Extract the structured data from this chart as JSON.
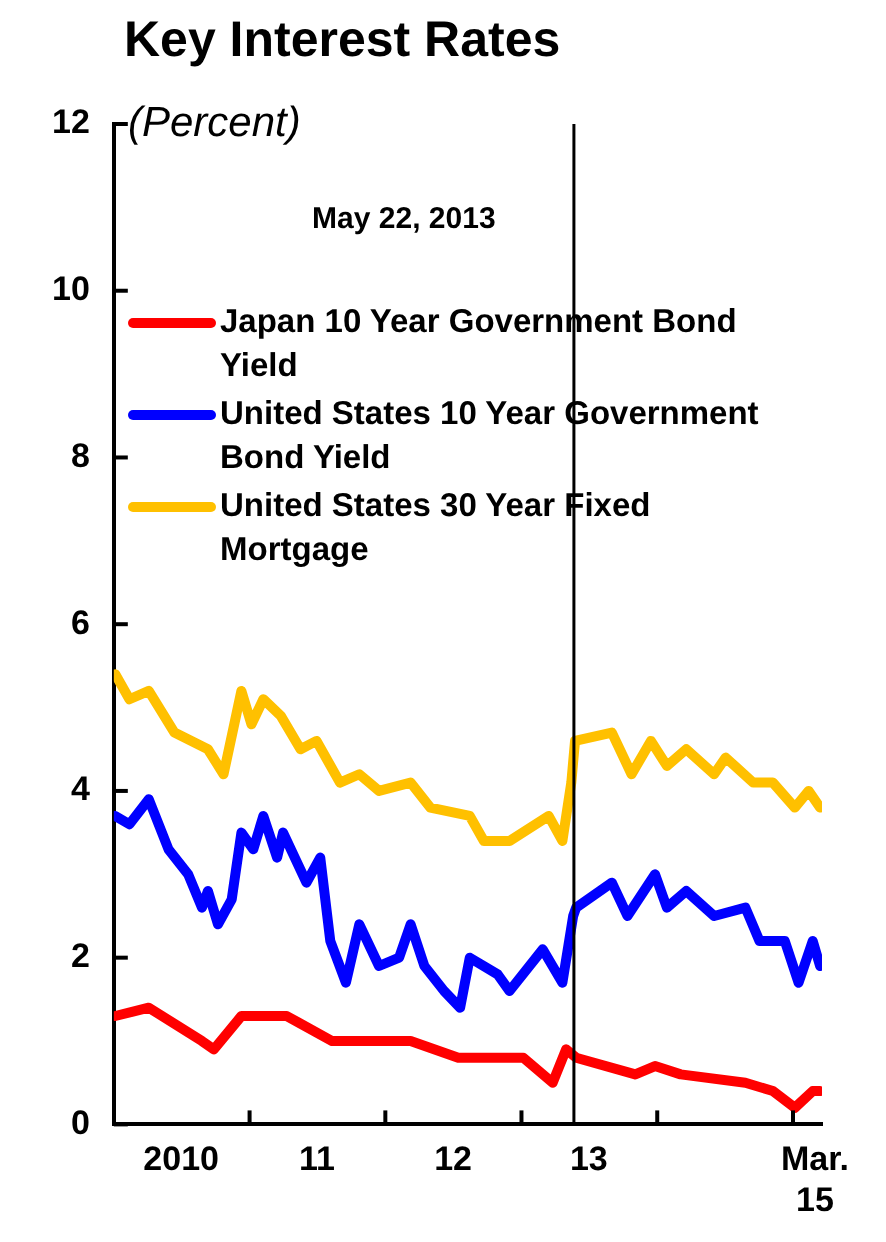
{
  "chart_data": {
    "type": "line",
    "title": "Key Interest Rates",
    "subtitle": "(Percent)",
    "legend": "top left",
    "marker": "none",
    "line_style": "solid",
    "grid": false,
    "xlim": [
      "2010-01-01",
      "2015-03-20"
    ],
    "xticks": [
      {
        "value": "2010-07-01",
        "label": "2010"
      },
      {
        "value": "2011-01-01",
        "label": null
      },
      {
        "value": "2011-07-01",
        "label": "11"
      },
      {
        "value": "2012-01-01",
        "label": null
      },
      {
        "value": "2012-07-01",
        "label": "12"
      },
      {
        "value": "2013-01-01",
        "label": null
      },
      {
        "value": "2013-07-01",
        "label": "13"
      },
      {
        "value": "2014-01-01",
        "label": null
      },
      {
        "value": "2015-01-01",
        "label": null
      },
      {
        "value": "2015-03-01",
        "label": "Mar. 15"
      }
    ],
    "ylim": [
      0,
      12
    ],
    "yticks": [
      0,
      2,
      4,
      6,
      8,
      10,
      12
    ],
    "ref_lines": [
      {
        "axis": "x",
        "value": "2013-05-22",
        "label": "May 22, 2013",
        "color": "#000000"
      }
    ],
    "series": [
      {
        "name": "Japan 10 Year Government Bond Yield",
        "color": "#ff0000",
        "x": [
          "2010-01-05",
          "2010-04-05",
          "2010-08-26",
          "2010-09-27",
          "2010-12-10",
          "2011-02-17",
          "2011-04-11",
          "2011-08-11",
          "2011-11-24",
          "2012-03-09",
          "2012-07-15",
          "2013-01-06",
          "2013-03-26",
          "2013-05-01",
          "2013-05-28",
          "2013-11-03",
          "2013-12-26",
          "2014-03-05",
          "2014-08-26",
          "2014-11-08",
          "2015-01-06",
          "2015-02-23",
          "2015-03-15"
        ],
        "values": [
          1.3,
          1.4,
          1.0,
          0.9,
          1.3,
          1.3,
          1.3,
          1.0,
          1.0,
          1.0,
          0.8,
          0.8,
          0.5,
          0.9,
          0.8,
          0.6,
          0.7,
          0.6,
          0.5,
          0.4,
          0.2,
          0.4,
          0.4
        ]
      },
      {
        "name": "United States 10 Year Government Bond Yield",
        "color": "#0000ff",
        "x": [
          "2010-01-05",
          "2010-02-12",
          "2010-04-05",
          "2010-05-28",
          "2010-07-20",
          "2010-08-26",
          "2010-09-11",
          "2010-10-08",
          "2010-11-14",
          "2010-12-10",
          "2011-01-11",
          "2011-02-07",
          "2011-03-16",
          "2011-04-01",
          "2011-06-03",
          "2011-07-10",
          "2011-08-06",
          "2011-09-17",
          "2011-10-23",
          "2011-12-15",
          "2012-02-07",
          "2012-03-09",
          "2012-04-15",
          "2012-06-07",
          "2012-07-20",
          "2012-08-15",
          "2012-10-29",
          "2012-11-30",
          "2013-02-27",
          "2013-04-21",
          "2013-05-20",
          "2013-05-28",
          "2013-09-01",
          "2013-10-13",
          "2013-12-26",
          "2014-01-27",
          "2014-03-20",
          "2014-06-03",
          "2014-08-26",
          "2014-10-03",
          "2014-12-10",
          "2015-01-16",
          "2015-02-23",
          "2015-03-15"
        ],
        "values": [
          3.7,
          3.6,
          3.9,
          3.3,
          3.0,
          2.6,
          2.8,
          2.4,
          2.7,
          3.5,
          3.3,
          3.7,
          3.2,
          3.5,
          2.9,
          3.2,
          2.2,
          1.7,
          2.4,
          1.9,
          2.0,
          2.4,
          1.9,
          1.6,
          1.4,
          2.0,
          1.8,
          1.6,
          2.1,
          1.7,
          2.5,
          2.6,
          2.9,
          2.5,
          3.0,
          2.6,
          2.8,
          2.5,
          2.6,
          2.2,
          2.2,
          1.7,
          2.2,
          1.9
        ]
      },
      {
        "name": "United States 30 Year Fixed Mortgage",
        "color": "#ffc000",
        "x": [
          "2010-01-05",
          "2010-02-12",
          "2010-04-05",
          "2010-06-13",
          "2010-09-11",
          "2010-10-23",
          "2010-12-10",
          "2011-01-06",
          "2011-02-07",
          "2011-03-26",
          "2011-05-18",
          "2011-06-30",
          "2011-09-01",
          "2011-10-23",
          "2011-12-15",
          "2012-03-09",
          "2012-05-01",
          "2012-08-15",
          "2012-09-22",
          "2012-11-30",
          "2013-03-15",
          "2013-04-21",
          "2013-05-15",
          "2013-05-25",
          "2013-09-01",
          "2013-10-24",
          "2013-12-15",
          "2014-01-27",
          "2014-03-20",
          "2014-06-03",
          "2014-07-04",
          "2014-09-16",
          "2014-11-08",
          "2015-01-06",
          "2015-02-12",
          "2015-03-15"
        ],
        "values": [
          5.4,
          5.1,
          5.2,
          4.7,
          4.5,
          4.2,
          5.2,
          4.8,
          5.1,
          4.9,
          4.5,
          4.6,
          4.1,
          4.2,
          4.0,
          4.1,
          3.8,
          3.7,
          3.4,
          3.4,
          3.7,
          3.4,
          4.1,
          4.6,
          4.7,
          4.2,
          4.6,
          4.3,
          4.5,
          4.2,
          4.4,
          4.1,
          4.1,
          3.8,
          4.0,
          3.8
        ]
      }
    ]
  }
}
